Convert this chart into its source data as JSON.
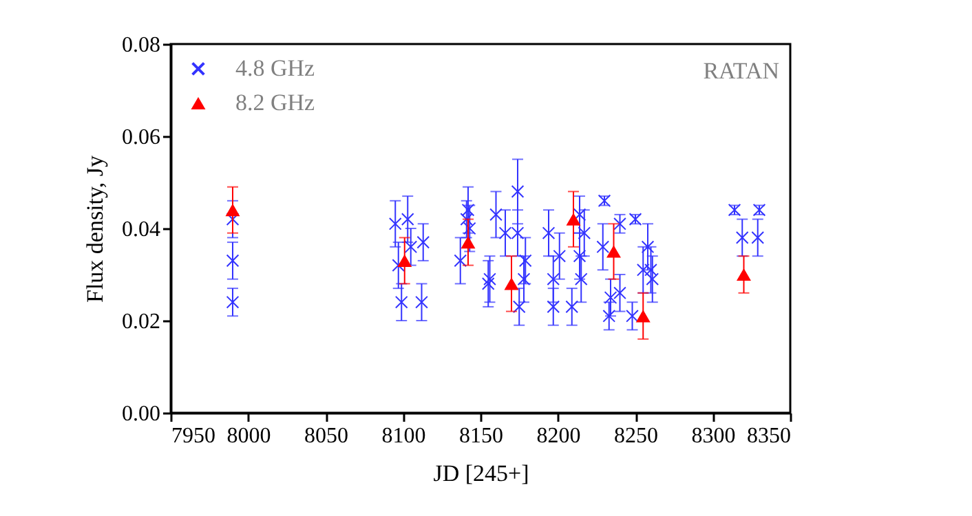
{
  "chart_data": {
    "type": "scatter",
    "xlabel": "JD [245+]",
    "ylabel": "Flux density, Jy",
    "annotations": [
      "RATAN"
    ],
    "xlim": [
      7950,
      8350
    ],
    "xticks": [
      7950,
      8000,
      8050,
      8100,
      8150,
      8200,
      8250,
      8300,
      8350
    ],
    "ylim": [
      0,
      0.08
    ],
    "yticks": [
      {
        "value": 0,
        "label": "0.00"
      },
      0.02,
      0.04,
      0.06,
      0.08
    ],
    "grid": false,
    "legend": "top left",
    "series": [
      {
        "name": "4.8 GHz",
        "color": "#3333ff",
        "marker": "cross",
        "x": [
          7990,
          7990,
          7990,
          8095,
          8103,
          8097,
          8099,
          8112,
          8113,
          8105,
          8141,
          8142,
          8143,
          8137,
          8160,
          8166,
          8174,
          8174,
          8156,
          8155,
          8179,
          8178,
          8175,
          8194,
          8201,
          8197,
          8197,
          8209,
          8214,
          8215,
          8214,
          8217,
          8230,
          8229,
          8240,
          8250,
          8234,
          8240,
          8233,
          8248,
          8258,
          8255,
          8260,
          8261,
          8314,
          8330,
          8319,
          8329
        ],
        "values": [
          0.042,
          0.033,
          0.024,
          0.041,
          0.042,
          0.032,
          0.024,
          0.024,
          0.037,
          0.036,
          0.042,
          0.044,
          0.04,
          0.033,
          0.043,
          0.039,
          0.048,
          0.039,
          0.029,
          0.028,
          0.033,
          0.029,
          0.023,
          0.039,
          0.034,
          0.029,
          0.023,
          0.023,
          0.034,
          0.029,
          0.043,
          0.039,
          0.046,
          0.036,
          0.041,
          0.042,
          0.025,
          0.026,
          0.021,
          0.021,
          0.036,
          0.031,
          0.031,
          0.029,
          0.044,
          0.044,
          0.038,
          0.038
        ],
        "errors": [
          0.004,
          0.004,
          0.003,
          0.005,
          0.005,
          0.005,
          0.004,
          0.004,
          0.004,
          0.004,
          0.004,
          0.005,
          0.005,
          0.005,
          0.005,
          0.005,
          0.007,
          0.005,
          0.005,
          0.005,
          0.005,
          0.005,
          0.004,
          0.005,
          0.005,
          0.005,
          0.004,
          0.004,
          0.005,
          0.005,
          0.004,
          0.005,
          0.001,
          0.005,
          0.002,
          0.001,
          0.004,
          0.004,
          0.003,
          0.003,
          0.005,
          0.005,
          0.005,
          0.005,
          0.001,
          0.001,
          0.004,
          0.004
        ]
      },
      {
        "name": "8.2 GHz",
        "color": "#ff0000",
        "marker": "triangle",
        "x": [
          7990,
          8101,
          8142,
          8170,
          8210,
          8236,
          8255,
          8320
        ],
        "values": [
          0.044,
          0.033,
          0.037,
          0.028,
          0.042,
          0.035,
          0.021,
          0.03
        ],
        "errors": [
          0.005,
          0.005,
          0.005,
          0.006,
          0.006,
          0.006,
          0.005,
          0.004
        ]
      }
    ]
  }
}
